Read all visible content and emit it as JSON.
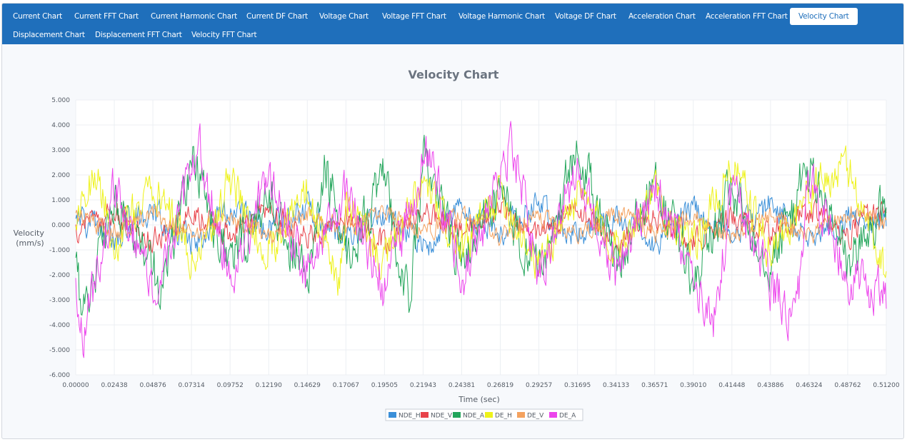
{
  "tabs": [
    {
      "label": "Current Chart",
      "active": false
    },
    {
      "label": "Current FFT Chart",
      "active": false
    },
    {
      "label": "Current Harmonic Chart",
      "active": false
    },
    {
      "label": "Current DF Chart",
      "active": false
    },
    {
      "label": "Voltage Chart",
      "active": false
    },
    {
      "label": "Voltage FFT Chart",
      "active": false
    },
    {
      "label": "Voltage Harmonic Chart",
      "active": false
    },
    {
      "label": "Voltage DF Chart",
      "active": false
    },
    {
      "label": "Acceleration Chart",
      "active": false
    },
    {
      "label": "Acceleration FFT Chart",
      "active": false
    },
    {
      "label": "Velocity Chart",
      "active": true
    },
    {
      "label": "Displacement Chart",
      "active": false
    },
    {
      "label": "Displacement FFT Chart",
      "active": false
    },
    {
      "label": "Velocity FFT Chart",
      "active": false
    }
  ],
  "colors": {
    "tabbar": "#1f6fbb",
    "active_tab_text": "#1f6fbb"
  },
  "chart_data": {
    "type": "line",
    "title": "Velocity Chart",
    "xlabel": "Time (sec)",
    "ylabel": [
      "Velocity",
      "(mm/s)"
    ],
    "xlim": [
      0,
      0.512
    ],
    "ylim": [
      -6,
      5
    ],
    "grid": true,
    "legend_position": "bottom-center",
    "x_ticks": [
      "0.00000",
      "0.02438",
      "0.04876",
      "0.07314",
      "0.09752",
      "0.12190",
      "0.14629",
      "0.17067",
      "0.19505",
      "0.21943",
      "0.24381",
      "0.26819",
      "0.29257",
      "0.31695",
      "0.34133",
      "0.36571",
      "0.39010",
      "0.41448",
      "0.43886",
      "0.46324",
      "0.48762",
      "0.51200"
    ],
    "y_ticks": [
      "5.000",
      "4.000",
      "3.000",
      "2.000",
      "1.000",
      "0.000",
      "-1.000",
      "-2.000",
      "-3.000",
      "-4.000",
      "-5.000",
      "-6.000"
    ],
    "series": [
      {
        "name": "NDE_H",
        "color": "#3a8fd8",
        "amplitude": 0.9,
        "x": [
          0,
          0.02438,
          0.04876,
          0.07314,
          0.09752,
          0.1219,
          0.14629,
          0.17067,
          0.19505,
          0.21943,
          0.24381,
          0.26819,
          0.29257,
          0.31695,
          0.34133,
          0.36571,
          0.3901,
          0.41448,
          0.43886,
          0.46324,
          0.48762,
          0.512
        ],
        "values": [
          0.3,
          -0.4,
          0.6,
          -0.8,
          0.5,
          -0.2,
          0.7,
          -0.6,
          0.4,
          -0.9,
          0.6,
          -0.3,
          0.8,
          -0.5,
          0.2,
          -0.7,
          0.6,
          -0.4,
          0.9,
          -0.6,
          0.3,
          0.2
        ]
      },
      {
        "name": "NDE_V",
        "color": "#e8424a",
        "amplitude": 0.8,
        "x": [
          0,
          0.02438,
          0.04876,
          0.07314,
          0.09752,
          0.1219,
          0.14629,
          0.17067,
          0.19505,
          0.21943,
          0.24381,
          0.26819,
          0.29257,
          0.31695,
          0.34133,
          0.36571,
          0.3901,
          0.41448,
          0.43886,
          0.46324,
          0.48762,
          0.512
        ],
        "values": [
          -0.2,
          0.5,
          -0.6,
          0.4,
          -0.3,
          0.6,
          -0.5,
          0.3,
          -0.7,
          0.5,
          -0.2,
          0.6,
          -0.4,
          0.7,
          -0.5,
          0.3,
          -0.6,
          0.4,
          -0.3,
          0.5,
          -0.4,
          0.9
        ]
      },
      {
        "name": "NDE_A",
        "color": "#22a55a",
        "amplitude": 1.6,
        "x": [
          0,
          0.00333,
          0.02438,
          0.04876,
          0.05293,
          0.07314,
          0.09752,
          0.1219,
          0.14629,
          0.15786,
          0.17067,
          0.19505,
          0.21082,
          0.21943,
          0.24381,
          0.26819,
          0.29257,
          0.31695,
          0.34133,
          0.36571,
          0.3901,
          0.41448,
          0.43886,
          0.46324,
          0.48762,
          0.512
        ],
        "values": [
          -0.5,
          -3.8,
          1.0,
          -1.2,
          -3.0,
          2.7,
          -1.6,
          1.3,
          -2.4,
          2.4,
          -1.2,
          1.8,
          -3.2,
          2.5,
          -1.5,
          1.2,
          -1.9,
          2.9,
          -1.4,
          1.6,
          -2.2,
          1.3,
          -1.5,
          2.3,
          -1.6,
          0.9
        ]
      },
      {
        "name": "DE_H",
        "color": "#eef21a",
        "amplitude": 1.3,
        "x": [
          0,
          0.01251,
          0.02438,
          0.04876,
          0.07314,
          0.09752,
          0.1219,
          0.14629,
          0.16615,
          0.17067,
          0.19505,
          0.21943,
          0.24381,
          0.26819,
          0.29257,
          0.31695,
          0.34133,
          0.36571,
          0.3901,
          0.41448,
          0.43886,
          0.46324,
          0.48762,
          0.512
        ],
        "values": [
          0.2,
          2.2,
          -0.8,
          1.5,
          -1.2,
          1.6,
          -0.9,
          1.2,
          -2.6,
          0.8,
          -1.5,
          1.6,
          -1.1,
          1.4,
          -1.6,
          1.2,
          -0.8,
          1.3,
          -1.0,
          2.5,
          -1.1,
          1.3,
          2.3,
          -1.8
        ]
      },
      {
        "name": "DE_V",
        "color": "#f4a25f",
        "amplitude": 0.6,
        "x": [
          0,
          0.02438,
          0.04876,
          0.07314,
          0.09752,
          0.1219,
          0.14629,
          0.17067,
          0.19505,
          0.21943,
          0.24381,
          0.26819,
          0.29257,
          0.31695,
          0.34133,
          0.36571,
          0.3901,
          0.41448,
          0.43886,
          0.46324,
          0.48762,
          0.512
        ],
        "values": [
          0.4,
          -0.3,
          0.5,
          -0.4,
          0.3,
          -0.5,
          0.4,
          -0.2,
          0.5,
          -0.3,
          0.4,
          -0.5,
          0.3,
          -0.4,
          0.5,
          -0.3,
          0.4,
          -0.5,
          0.3,
          -0.4,
          0.5,
          0.1
        ]
      },
      {
        "name": "DE_A",
        "color": "#ec44ec",
        "amplitude": 1.5,
        "x": [
          0,
          0.00541,
          0.02438,
          0.04876,
          0.07314,
          0.07814,
          0.09752,
          0.1219,
          0.14629,
          0.17067,
          0.19505,
          0.2236,
          0.24381,
          0.26819,
          0.27567,
          0.29257,
          0.31695,
          0.34133,
          0.36571,
          0.3901,
          0.4028,
          0.41448,
          0.43886,
          0.45533,
          0.46324,
          0.48762,
          0.512
        ],
        "values": [
          -2.8,
          -4.4,
          1.5,
          -2.3,
          1.8,
          3.0,
          -2.3,
          1.7,
          -2.0,
          1.4,
          -2.6,
          3.1,
          -2.4,
          2.0,
          3.3,
          -2.2,
          2.5,
          -2.1,
          1.8,
          -2.4,
          -4.2,
          1.5,
          -2.5,
          -3.7,
          2.0,
          -2.3,
          -2.8
        ]
      }
    ]
  }
}
